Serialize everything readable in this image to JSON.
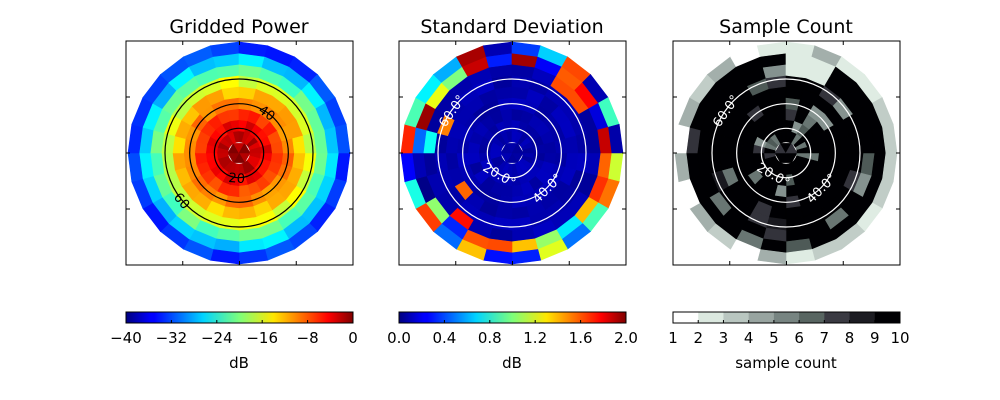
{
  "chart_data": [
    {
      "type": "heatmap",
      "projection": "polar-hemisphere",
      "title": "Gridded Power",
      "colormap": "jet",
      "colorbar": {
        "label": "dB",
        "range": [
          -40,
          0
        ],
        "tick_labels": [
          "−40",
          "−32",
          "−24",
          "−16",
          "−8",
          "0"
        ],
        "ticks": [
          -40,
          -32,
          -24,
          -16,
          -8,
          0
        ]
      },
      "contour_color": "#000000",
      "contours": [
        {
          "angle": 20,
          "label": "20"
        },
        {
          "angle": 40,
          "label": "40"
        },
        {
          "angle": 60,
          "label": "60"
        }
      ],
      "description_of_field": "radially decreasing power: about -1 dB at center, about -10 dB at 40 deg, about -35 dB at the rim",
      "value_model": {
        "center": -1,
        "at_40": -10,
        "rim": -36
      },
      "grid": {
        "rings": 10,
        "sectors": 24
      }
    },
    {
      "type": "heatmap",
      "projection": "polar-hemisphere",
      "title": "Standard Deviation",
      "colormap": "jet",
      "colorbar": {
        "label": "dB",
        "range": [
          0,
          2
        ],
        "tick_labels": [
          "0.0",
          "0.4",
          "0.8",
          "1.2",
          "1.6",
          "2.0"
        ],
        "ticks": [
          0,
          0.4,
          0.8,
          1.2,
          1.6,
          2.0
        ]
      },
      "contour_color": "#ffffff",
      "contours": [
        {
          "angle": 20,
          "label": "20.0"
        },
        {
          "angle": 40,
          "label": "40.0"
        },
        {
          "angle": 60,
          "label": "60.0"
        }
      ],
      "value_model": {
        "interior": 0.05,
        "rim_max": 2.0
      }
    },
    {
      "type": "heatmap",
      "projection": "polar-hemisphere",
      "title": "Sample Count",
      "colormap": "bone_r (discrete)",
      "colorbar": {
        "label": "sample count",
        "range": [
          1,
          10
        ],
        "tick_labels": [
          "1",
          "2",
          "3",
          "4",
          "5",
          "6",
          "7",
          "8",
          "9",
          "10"
        ],
        "ticks": [
          1,
          2,
          3,
          4,
          5,
          6,
          7,
          8,
          9,
          10
        ]
      },
      "contour_color": "#ffffff",
      "contours": [
        {
          "angle": 20,
          "label": "20.0"
        },
        {
          "angle": 40,
          "label": "40.0"
        },
        {
          "angle": 60,
          "label": "60.0"
        }
      ],
      "value_model": {
        "typical": 10,
        "min": 1
      }
    }
  ]
}
